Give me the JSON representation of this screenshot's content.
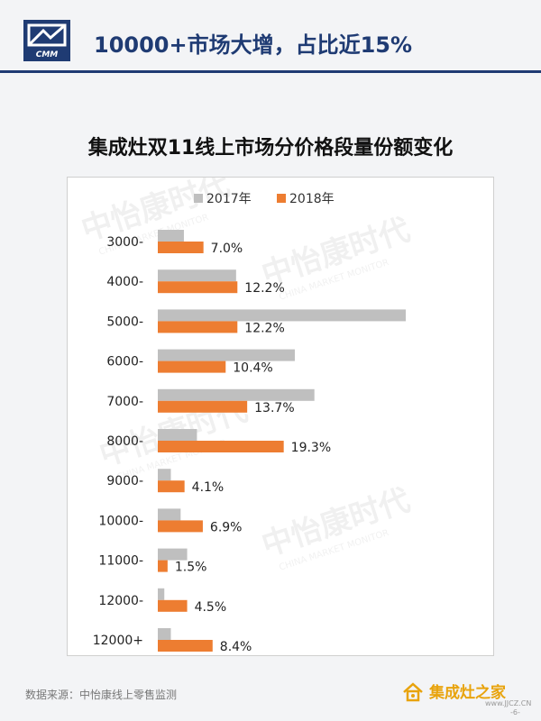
{
  "header": {
    "logo_text": "CMM",
    "title": "10000+市场大增，占比近15%"
  },
  "watermark": {
    "brand": "中怡康时代",
    "english": "CHINA MARKET MONITOR",
    "logo_text": "CMM"
  },
  "chart_data": {
    "type": "bar",
    "orientation": "horizontal",
    "title": "集成灶双11线上市场分价格段量份额变化",
    "categories": [
      "3000-",
      "4000-",
      "5000-",
      "6000-",
      "7000-",
      "8000-",
      "9000-",
      "10000-",
      "11000-",
      "12000-",
      "12000+"
    ],
    "series": [
      {
        "name": "2017年",
        "color": "#bfbfbf",
        "values": [
          4.0,
          12.0,
          38.0,
          21.0,
          24.0,
          6.0,
          2.0,
          3.5,
          4.5,
          1.0,
          2.0
        ],
        "labels_shown": false
      },
      {
        "name": "2018年",
        "color": "#ed7d31",
        "values": [
          7.0,
          12.2,
          12.2,
          10.4,
          13.7,
          19.3,
          4.1,
          6.9,
          1.5,
          4.5,
          8.4
        ],
        "value_labels": [
          "7.0%",
          "12.2%",
          "12.2%",
          "10.4%",
          "13.7%",
          "19.3%",
          "4.1%",
          "6.9%",
          "1.5%",
          "4.5%",
          "8.4%"
        ]
      }
    ],
    "legend_position": "top",
    "x_axis_visible": false,
    "grid": false
  },
  "footer": {
    "source": "数据来源：中怡康线上零售监测",
    "site_name": "集成灶之家",
    "site_url": "www.JJCZ.CN",
    "page_number": "-6-"
  }
}
